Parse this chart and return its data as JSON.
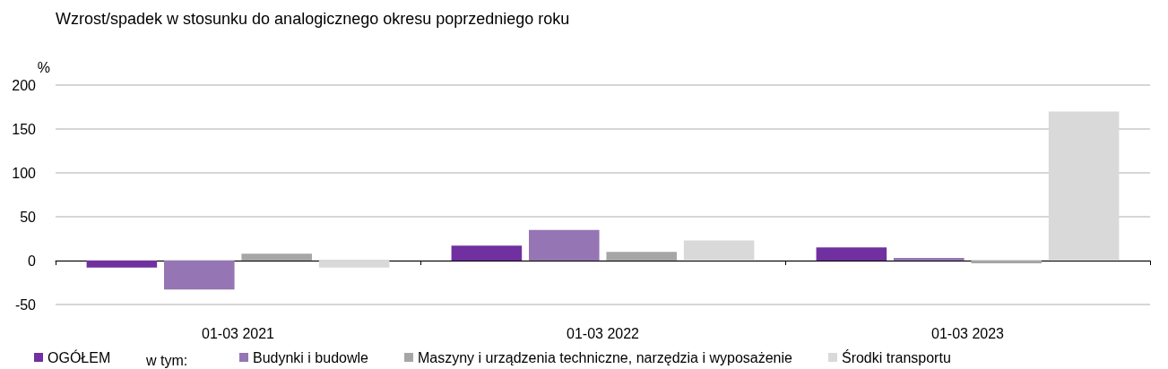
{
  "chart_data": {
    "type": "bar",
    "title": "Wzrost/spadek w stosunku do analogicznego okresu poprzedniego roku",
    "ylabel": "%",
    "categories": [
      "01-03 2021",
      "01-03 2022",
      "01-03 2023"
    ],
    "series": [
      {
        "name": "OGÓŁEM",
        "color": "#7030a0",
        "values": [
          -8,
          17,
          15
        ]
      },
      {
        "name": "Budynki i budowle",
        "color": "#9575b3",
        "values": [
          -33,
          35,
          3
        ]
      },
      {
        "name": "Maszyny i urządzenia techniczne, narzędzia i wyposażenie",
        "color": "#a6a6a6",
        "values": [
          8,
          10,
          -3
        ]
      },
      {
        "name": "Środki transportu",
        "color": "#d9d9d9",
        "values": [
          -8,
          23,
          170
        ]
      }
    ],
    "annotations": [
      "w tym:"
    ],
    "ylim": [
      -50,
      200
    ],
    "yticks": [
      -50,
      0,
      50,
      100,
      150,
      200
    ],
    "grid": "y",
    "legend": "bottom"
  }
}
